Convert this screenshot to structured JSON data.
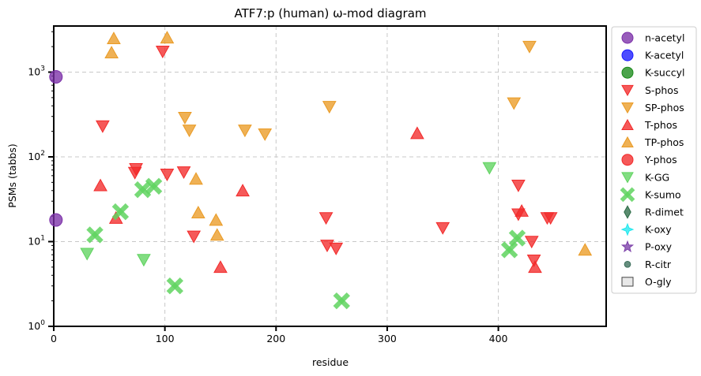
{
  "chart_data": {
    "type": "scatter",
    "title": "ATF7:p (human) ω-mod diagram",
    "xlabel": "residue",
    "ylabel": "PSMs (tabbs)",
    "xlim": [
      0,
      497
    ],
    "ylim": [
      1,
      3500
    ],
    "yscale": "log",
    "x_ticks": [
      0,
      100,
      200,
      300,
      400
    ],
    "y_ticks": [
      {
        "v": 1,
        "label": "10^0"
      },
      {
        "v": 10,
        "label": "10^1"
      },
      {
        "v": 100,
        "label": "10^2"
      },
      {
        "v": 1000,
        "label": "10^3"
      }
    ],
    "grid": true,
    "legend_position": "right",
    "series": [
      {
        "name": "n-acetyl",
        "marker": "circle",
        "color": "#7b2fa8",
        "points": [
          [
            2,
            880
          ],
          [
            2,
            18
          ]
        ]
      },
      {
        "name": "K-acetyl",
        "marker": "circle",
        "color": "#1a1aff",
        "points": []
      },
      {
        "name": "K-succyl",
        "marker": "circle",
        "color": "#1a8a1a",
        "points": []
      },
      {
        "name": "S-phos",
        "marker": "triangle-down",
        "color": "#f22a2a",
        "points": [
          [
            44,
            230
          ],
          [
            74,
            72
          ],
          [
            73,
            65
          ],
          [
            98,
            1750
          ],
          [
            102,
            62
          ],
          [
            117,
            66
          ],
          [
            126,
            11.5
          ],
          [
            245,
            19
          ],
          [
            246,
            9
          ],
          [
            254,
            8.3
          ],
          [
            350,
            14.5
          ],
          [
            418,
            46
          ],
          [
            418,
            21
          ],
          [
            430,
            10
          ],
          [
            432,
            6
          ],
          [
            444,
            19
          ],
          [
            447,
            19
          ]
        ]
      },
      {
        "name": "SP-phos",
        "marker": "triangle-down",
        "color": "#ea9b25",
        "points": [
          [
            118,
            290
          ],
          [
            122,
            205
          ],
          [
            172,
            205
          ],
          [
            190,
            185
          ],
          [
            248,
            390
          ],
          [
            414,
            430
          ],
          [
            428,
            2000
          ]
        ]
      },
      {
        "name": "T-phos",
        "marker": "triangle-up",
        "color": "#f22a2a",
        "points": [
          [
            42,
            46
          ],
          [
            56,
            19
          ],
          [
            150,
            5
          ],
          [
            170,
            40
          ],
          [
            327,
            190
          ],
          [
            421,
            23
          ],
          [
            433,
            5
          ]
        ]
      },
      {
        "name": "TP-phos",
        "marker": "triangle-up",
        "color": "#ea9b25",
        "points": [
          [
            52,
            1700
          ],
          [
            54,
            2500
          ],
          [
            102,
            2550
          ],
          [
            128,
            55
          ],
          [
            130,
            22
          ],
          [
            146,
            18
          ],
          [
            147,
            12
          ],
          [
            478,
            8
          ]
        ]
      },
      {
        "name": "Y-phos",
        "marker": "circle",
        "color": "#f22a2a",
        "points": []
      },
      {
        "name": "K-GG",
        "marker": "triangle-down",
        "color": "#5fd35f",
        "points": [
          [
            30,
            7.2
          ],
          [
            81,
            6.1
          ],
          [
            392,
            74
          ]
        ]
      },
      {
        "name": "K-sumo",
        "marker": "x",
        "color": "#5fd35f",
        "points": [
          [
            37,
            12
          ],
          [
            60,
            22.5
          ],
          [
            80,
            41
          ],
          [
            90,
            45
          ],
          [
            109,
            3
          ],
          [
            259,
            2
          ],
          [
            410,
            8
          ],
          [
            417,
            11
          ]
        ]
      },
      {
        "name": "R-dimet",
        "marker": "diamond",
        "color": "#2c6b46",
        "points": []
      },
      {
        "name": "K-oxy",
        "marker": "star4",
        "color": "#22e8ee",
        "points": []
      },
      {
        "name": "P-oxy",
        "marker": "star",
        "color": "#7b3fa8",
        "points": []
      },
      {
        "name": "R-citr",
        "marker": "dot",
        "color": "#3b6e5a",
        "points": []
      },
      {
        "name": "O-gly",
        "marker": "square",
        "color": "#e8e8e8",
        "points": []
      }
    ]
  }
}
